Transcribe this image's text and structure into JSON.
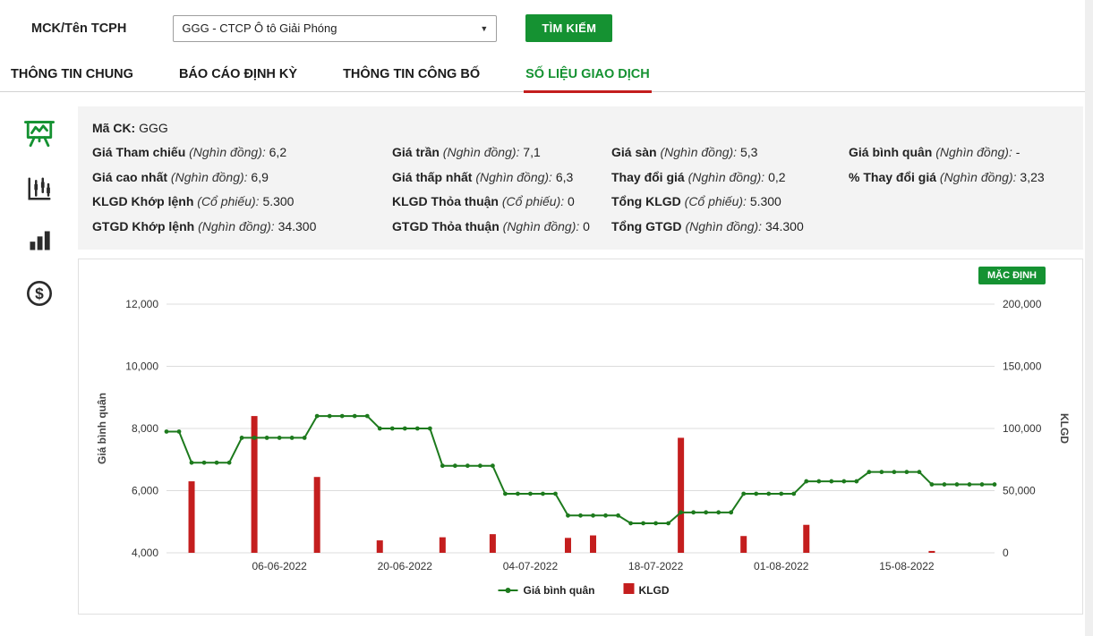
{
  "search": {
    "label": "MCK/Tên TCPH",
    "selected": "GGG - CTCP Ô tô Giải Phóng",
    "button": "TÌM KIẾM"
  },
  "tabs": [
    {
      "label": "THÔNG TIN CHUNG",
      "active": false
    },
    {
      "label": "BÁO CÁO ĐỊNH KỲ",
      "active": false
    },
    {
      "label": "THÔNG TIN CÔNG BỐ",
      "active": false
    },
    {
      "label": "SỐ LIỆU GIAO DỊCH",
      "active": true
    }
  ],
  "sidebar": {
    "icons": [
      {
        "name": "presentation-chart-icon",
        "active": true
      },
      {
        "name": "candlestick-chart-icon",
        "active": false
      },
      {
        "name": "bar-chart-icon",
        "active": false
      },
      {
        "name": "dollar-circle-icon",
        "active": false
      }
    ]
  },
  "info": {
    "code_label": "Mã CK:",
    "code_value": "GGG",
    "rows": [
      [
        {
          "label": "Giá Tham chiếu",
          "unit": "(Nghìn đồng):",
          "value": "6,2"
        },
        {
          "label": "Giá trần",
          "unit": "(Nghìn đồng):",
          "value": "7,1"
        },
        {
          "label": "Giá sàn",
          "unit": "(Nghìn đồng):",
          "value": "5,3"
        },
        {
          "label": "Giá bình quân",
          "unit": "(Nghìn đồng):",
          "value": "-"
        }
      ],
      [
        {
          "label": "Giá cao nhất",
          "unit": "(Nghìn đồng):",
          "value": "6,9"
        },
        {
          "label": "Giá thấp nhất",
          "unit": "(Nghìn đồng):",
          "value": "6,3"
        },
        {
          "label": "Thay đổi giá",
          "unit": "(Nghìn đồng):",
          "value": "0,2"
        },
        {
          "label": "% Thay đổi giá",
          "unit": "(Nghìn đồng):",
          "value": "3,23"
        }
      ],
      [
        {
          "label": "KLGD Khớp lệnh",
          "unit": "(Cổ phiếu):",
          "value": "5.300"
        },
        {
          "label": "KLGD Thỏa thuận",
          "unit": "(Cổ phiếu):",
          "value": "0"
        },
        {
          "label": "Tổng KLGD",
          "unit": "(Cổ phiếu):",
          "value": "5.300"
        }
      ],
      [
        {
          "label": "GTGD Khớp lệnh",
          "unit": "(Nghìn đồng):",
          "value": "34.300"
        },
        {
          "label": "GTGD Thỏa thuận",
          "unit": "(Nghìn đồng):",
          "value": "0"
        },
        {
          "label": "Tổng GTGD",
          "unit": "(Nghìn đồng):",
          "value": "34.300"
        }
      ]
    ]
  },
  "chart": {
    "default_button": "MẶC ĐỊNH"
  },
  "chart_data": {
    "type": "line+bar",
    "title": "",
    "left_axis": {
      "label": "Giá bình quân",
      "min": 4000,
      "max": 12000,
      "ticks": [
        4000,
        6000,
        8000,
        10000,
        12000
      ]
    },
    "right_axis": {
      "label": "KLGD",
      "min": 0,
      "max": 200000,
      "ticks": [
        0,
        50000,
        100000,
        150000,
        200000
      ]
    },
    "x_tick_labels": [
      "06-06-2022",
      "20-06-2022",
      "04-07-2022",
      "18-07-2022",
      "01-08-2022",
      "15-08-2022"
    ],
    "x": [
      "24-05-2022",
      "25-05-2022",
      "26-05-2022",
      "27-05-2022",
      "30-05-2022",
      "31-05-2022",
      "01-06-2022",
      "02-06-2022",
      "03-06-2022",
      "06-06-2022",
      "07-06-2022",
      "08-06-2022",
      "09-06-2022",
      "10-06-2022",
      "13-06-2022",
      "14-06-2022",
      "15-06-2022",
      "16-06-2022",
      "17-06-2022",
      "20-06-2022",
      "21-06-2022",
      "22-06-2022",
      "23-06-2022",
      "24-06-2022",
      "27-06-2022",
      "28-06-2022",
      "29-06-2022",
      "30-06-2022",
      "01-07-2022",
      "04-07-2022",
      "05-07-2022",
      "06-07-2022",
      "07-07-2022",
      "08-07-2022",
      "11-07-2022",
      "12-07-2022",
      "13-07-2022",
      "14-07-2022",
      "15-07-2022",
      "18-07-2022",
      "19-07-2022",
      "20-07-2022",
      "21-07-2022",
      "22-07-2022",
      "25-07-2022",
      "26-07-2022",
      "27-07-2022",
      "28-07-2022",
      "29-07-2022",
      "01-08-2022",
      "02-08-2022",
      "03-08-2022",
      "04-08-2022",
      "05-08-2022",
      "08-08-2022",
      "09-08-2022",
      "10-08-2022",
      "11-08-2022",
      "12-08-2022",
      "15-08-2022",
      "16-08-2022",
      "17-08-2022",
      "18-08-2022",
      "19-08-2022",
      "22-08-2022",
      "23-08-2022",
      "24-08-2022"
    ],
    "series": [
      {
        "name": "Giá bình quân",
        "type": "line",
        "color": "#1d7a1d",
        "values": [
          7900,
          7900,
          6900,
          6900,
          6900,
          6900,
          7700,
          7700,
          7700,
          7700,
          7700,
          7700,
          8400,
          8400,
          8400,
          8400,
          8400,
          8000,
          8000,
          8000,
          8000,
          8000,
          6800,
          6800,
          6800,
          6800,
          6800,
          5900,
          5900,
          5900,
          5900,
          5900,
          5200,
          5200,
          5200,
          5200,
          5200,
          4950,
          4950,
          4950,
          4950,
          5300,
          5300,
          5300,
          5300,
          5300,
          5900,
          5900,
          5900,
          5900,
          5900,
          6300,
          6300,
          6300,
          6300,
          6300,
          6600,
          6600,
          6600,
          6600,
          6600,
          6200,
          6200,
          6200,
          6200,
          6200,
          6200
        ]
      },
      {
        "name": "KLGD",
        "type": "bar",
        "color": "#c41e1e",
        "values": [
          0,
          0,
          57500,
          0,
          0,
          0,
          0,
          110000,
          0,
          0,
          0,
          0,
          61000,
          0,
          0,
          0,
          0,
          10000,
          0,
          0,
          0,
          0,
          12500,
          0,
          0,
          0,
          15000,
          0,
          0,
          0,
          0,
          0,
          12000,
          0,
          14000,
          0,
          0,
          0,
          0,
          0,
          0,
          92500,
          0,
          0,
          0,
          0,
          13500,
          0,
          0,
          0,
          0,
          22500,
          0,
          0,
          0,
          0,
          0,
          0,
          0,
          0,
          0,
          1500,
          0,
          0,
          0,
          0,
          0
        ]
      }
    ],
    "legend": [
      {
        "name": "Giá bình quân",
        "type": "line",
        "color": "#1d7a1d"
      },
      {
        "name": "KLGD",
        "type": "bar",
        "color": "#c41e1e"
      }
    ],
    "grid": "horizontal",
    "legend_position": "bottom-center"
  }
}
